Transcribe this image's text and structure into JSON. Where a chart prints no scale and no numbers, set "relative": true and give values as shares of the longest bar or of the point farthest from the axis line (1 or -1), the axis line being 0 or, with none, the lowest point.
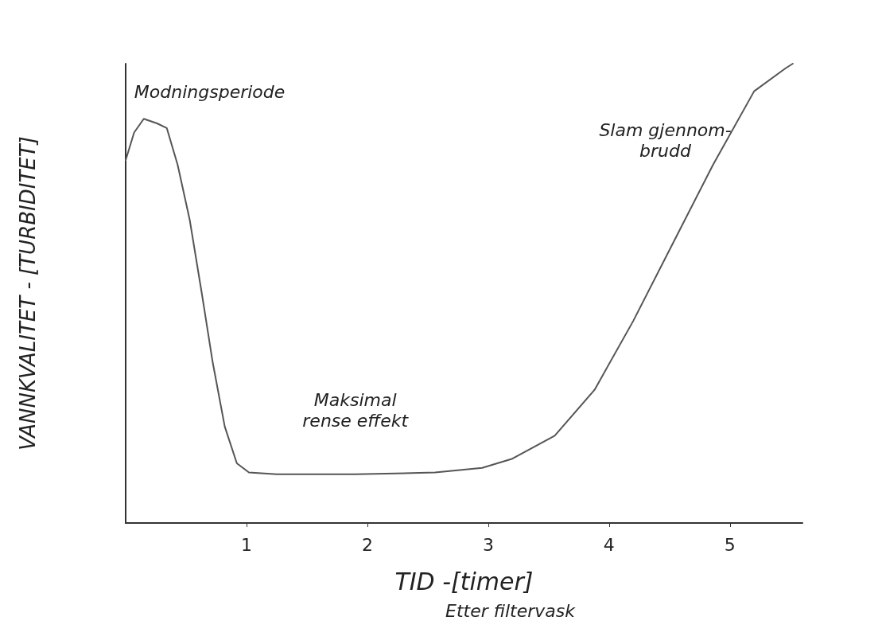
{
  "chart_data": {
    "type": "line",
    "relative": true,
    "ylabel": "VANNKVALITET - [TURBIDITET]",
    "xlabel": "TID -[timer]",
    "x": [
      0,
      0.07,
      0.15,
      0.26,
      0.34,
      0.43,
      0.53,
      0.63,
      0.72,
      0.82,
      0.92,
      1.02,
      1.25,
      1.9,
      2.56,
      2.95,
      3.2,
      3.55,
      3.88,
      4.2,
      4.53,
      4.86,
      5.2,
      5.46,
      5.52
    ],
    "series": [
      {
        "color": "#555555",
        "values": [
          0.79,
          0.85,
          0.88,
          0.87,
          0.86,
          0.78,
          0.66,
          0.5,
          0.35,
          0.21,
          0.13,
          0.11,
          0.106,
          0.106,
          0.11,
          0.12,
          0.14,
          0.19,
          0.29,
          0.44,
          0.61,
          0.78,
          0.94,
          0.99,
          1
        ]
      }
    ],
    "xlim": [
      0,
      5.6
    ],
    "xticks": [
      1,
      2,
      3,
      4,
      5
    ],
    "annotations": [
      {
        "text": "Modningsperiode",
        "x": 0.3,
        "y": 0.87
      },
      {
        "text": "Maksimal\nrense effekt",
        "x": 1.9,
        "y": 0.106
      },
      {
        "text": "Slam gjennom-\nbrudd",
        "x": 4.86,
        "y": 0.78
      },
      "Etter filtervask"
    ],
    "grid": false,
    "marker": "none",
    "line_style": "solid"
  }
}
